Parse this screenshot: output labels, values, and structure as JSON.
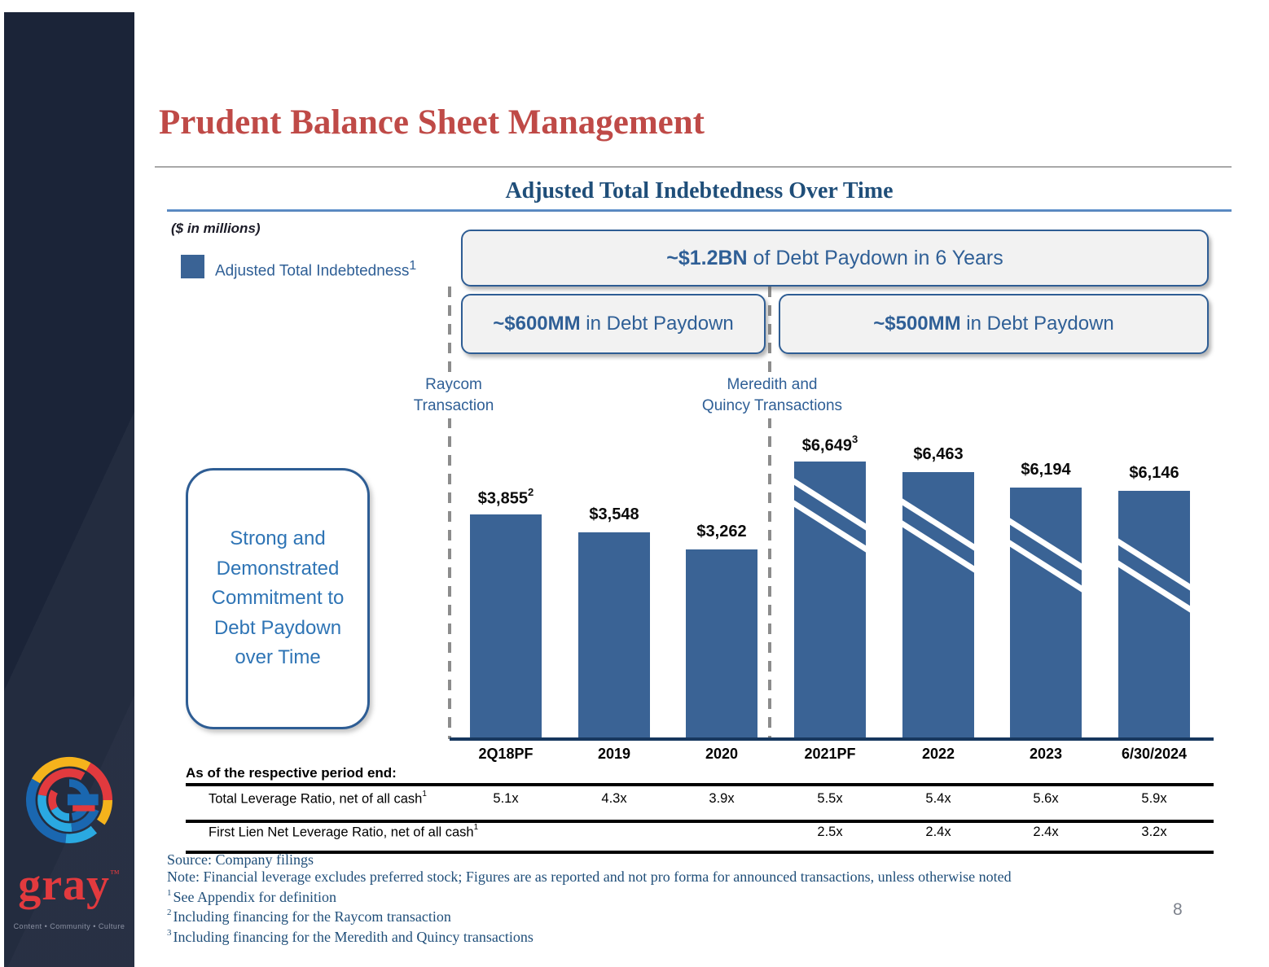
{
  "slide": {
    "title": "Prudent Balance Sheet Management",
    "page_number": "8"
  },
  "chart": {
    "title": "Adjusted Total Indebtedness Over Time",
    "units_note": "($ in millions)",
    "legend": {
      "label": "Adjusted Total Indebtedness",
      "sup": "1",
      "swatch_color": "#3a6395",
      "position": "top-left"
    }
  },
  "callouts": {
    "total": {
      "bold": "~$1.2BN",
      "rest": " of Debt Paydown in 6 Years"
    },
    "left": {
      "bold": "~$600MM",
      "rest": " in Debt Paydown"
    },
    "right": {
      "bold": "~$500MM",
      "rest": " in Debt Paydown"
    }
  },
  "annotations": {
    "raycom": [
      "Raycom",
      "Transaction"
    ],
    "meredith": [
      "Meredith and",
      "Quincy Transactions"
    ],
    "commitment": [
      "Strong and",
      "Demonstrated",
      "Commitment to",
      "Debt Paydown",
      "over Time"
    ]
  },
  "chart_data": {
    "type": "bar",
    "title": "Adjusted Total Indebtedness Over Time",
    "units": "$ in millions",
    "series_name": "Adjusted Total Indebtedness",
    "categories": [
      "2Q18PF",
      "2019",
      "2020",
      "2021PF",
      "2022",
      "2023",
      "6/30/2024"
    ],
    "values": [
      3855,
      3548,
      3262,
      6649,
      6463,
      6194,
      6146
    ],
    "value_labels": [
      "$3,855",
      "$3,548",
      "$3,262",
      "$6,649",
      "$6,463",
      "$6,194",
      "$6,146"
    ],
    "footnote_marks": [
      "2",
      "",
      "",
      "3",
      "",
      "",
      ""
    ],
    "broken_axis": [
      false,
      false,
      false,
      true,
      true,
      true,
      true
    ],
    "bar_color": "#3a6395",
    "grid": false,
    "legend_position": "top-left",
    "notes": "Right four bars drawn with axis-break stripes (scale compressed)"
  },
  "table": {
    "heading": "As of the respective period end:",
    "rows": [
      {
        "label": "Total Leverage Ratio, net of all cash",
        "sup": "1",
        "values": [
          "5.1x",
          "4.3x",
          "3.9x",
          "5.5x",
          "5.4x",
          "5.6x",
          "5.9x"
        ]
      },
      {
        "label": "First Lien Net Leverage Ratio, net of all cash",
        "sup": "1",
        "values": [
          "",
          "",
          "",
          "2.5x",
          "2.4x",
          "2.4x",
          "3.2x"
        ]
      }
    ]
  },
  "footnotes": [
    {
      "sup": "",
      "text": "Source: Company filings"
    },
    {
      "sup": "",
      "text": "Note: Financial leverage excludes preferred stock; Figures are as reported and not pro forma for announced transactions, unless otherwise noted"
    },
    {
      "sup": "1",
      "text": "See Appendix for definition"
    },
    {
      "sup": "2",
      "text": "Including financing for the Raycom transaction"
    },
    {
      "sup": "3",
      "text": "Including financing for the Meredith and Quincy transactions"
    }
  ],
  "logo": {
    "name": "gray",
    "tm": "™",
    "tagline": "Content • Community • Culture"
  },
  "colors": {
    "title_red": "#bf4a47",
    "navy": "#1f4e79",
    "accent_blue": "#2e5d94",
    "bar_blue": "#3a6395",
    "sidebar_navy": "#1b2438",
    "box_fill": "#f2f2f2",
    "dash_gray": "#8c8c8c",
    "logo_red": "#e23a3e"
  }
}
